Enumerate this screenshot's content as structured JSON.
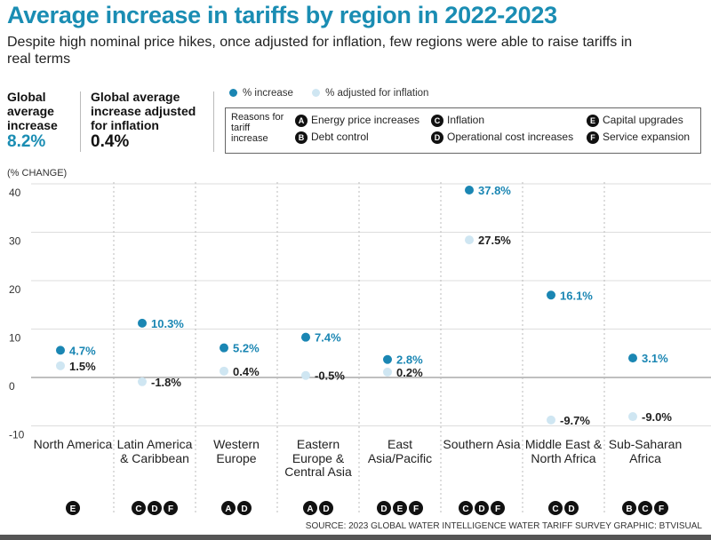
{
  "title": "Average increase in tariffs by region in 2022-2023",
  "subtitle": "Despite high nominal price hikes, once adjusted for inflation, few regions were able to raise tariffs in real terms",
  "kpis": [
    {
      "label": "Global average increase",
      "value": "8.2%"
    },
    {
      "label": "Global average increase adjusted for inflation",
      "value": "0.4%"
    }
  ],
  "legend": {
    "series": [
      "% increase",
      "% adjusted for inflation"
    ],
    "reasons_title": "Reasons for tariff increase",
    "reasons": [
      {
        "code": "A",
        "label": "Energy price increases"
      },
      {
        "code": "B",
        "label": "Debt control"
      },
      {
        "code": "C",
        "label": "Inflation"
      },
      {
        "code": "D",
        "label": "Operational cost increases"
      },
      {
        "code": "E",
        "label": "Capital upgrades"
      },
      {
        "code": "F",
        "label": "Service expansion"
      }
    ]
  },
  "colors": {
    "increase": "#1a86b3",
    "adjusted": "#cfe6f2",
    "title": "#1a8db3"
  },
  "chart_data": {
    "type": "scatter",
    "ylabel": "(% CHANGE)",
    "ylim": [
      -10,
      40
    ],
    "yticks": [
      -10,
      0,
      10,
      20,
      30,
      40
    ],
    "grid": false,
    "categories": [
      "North America",
      "Latin America & Caribbean",
      "Western Europe",
      "Eastern Europe & Central Asia",
      "East Asia/Pacific",
      "Southern Asia",
      "Middle East & North Africa",
      "Sub-Saharan Africa"
    ],
    "series": [
      {
        "name": "% increase",
        "values": [
          4.7,
          10.3,
          5.2,
          7.4,
          2.8,
          37.8,
          16.1,
          3.1
        ],
        "labels": [
          "4.7%",
          "10.3%",
          "5.2%",
          "7.4%",
          "2.8%",
          "37.8%",
          "16.1%",
          "3.1%"
        ]
      },
      {
        "name": "% adjusted for inflation",
        "values": [
          1.5,
          -1.8,
          0.4,
          -0.5,
          0.2,
          27.5,
          -9.7,
          -9.0
        ],
        "labels": [
          "1.5%",
          "-1.8%",
          "0.4%",
          "-0.5%",
          "0.2%",
          "27.5%",
          "-9.7%",
          "-9.0%"
        ]
      }
    ],
    "reasons": [
      [
        "E"
      ],
      [
        "C",
        "D",
        "F"
      ],
      [
        "A",
        "D"
      ],
      [
        "A",
        "D"
      ],
      [
        "D",
        "E",
        "F"
      ],
      [
        "C",
        "D",
        "F"
      ],
      [
        "C",
        "D"
      ],
      [
        "B",
        "C",
        "F"
      ]
    ]
  },
  "source": "SOURCE: 2023 GLOBAL WATER INTELLIGENCE WATER TARIFF SURVEY   GRAPHIC: BTVISUAL"
}
